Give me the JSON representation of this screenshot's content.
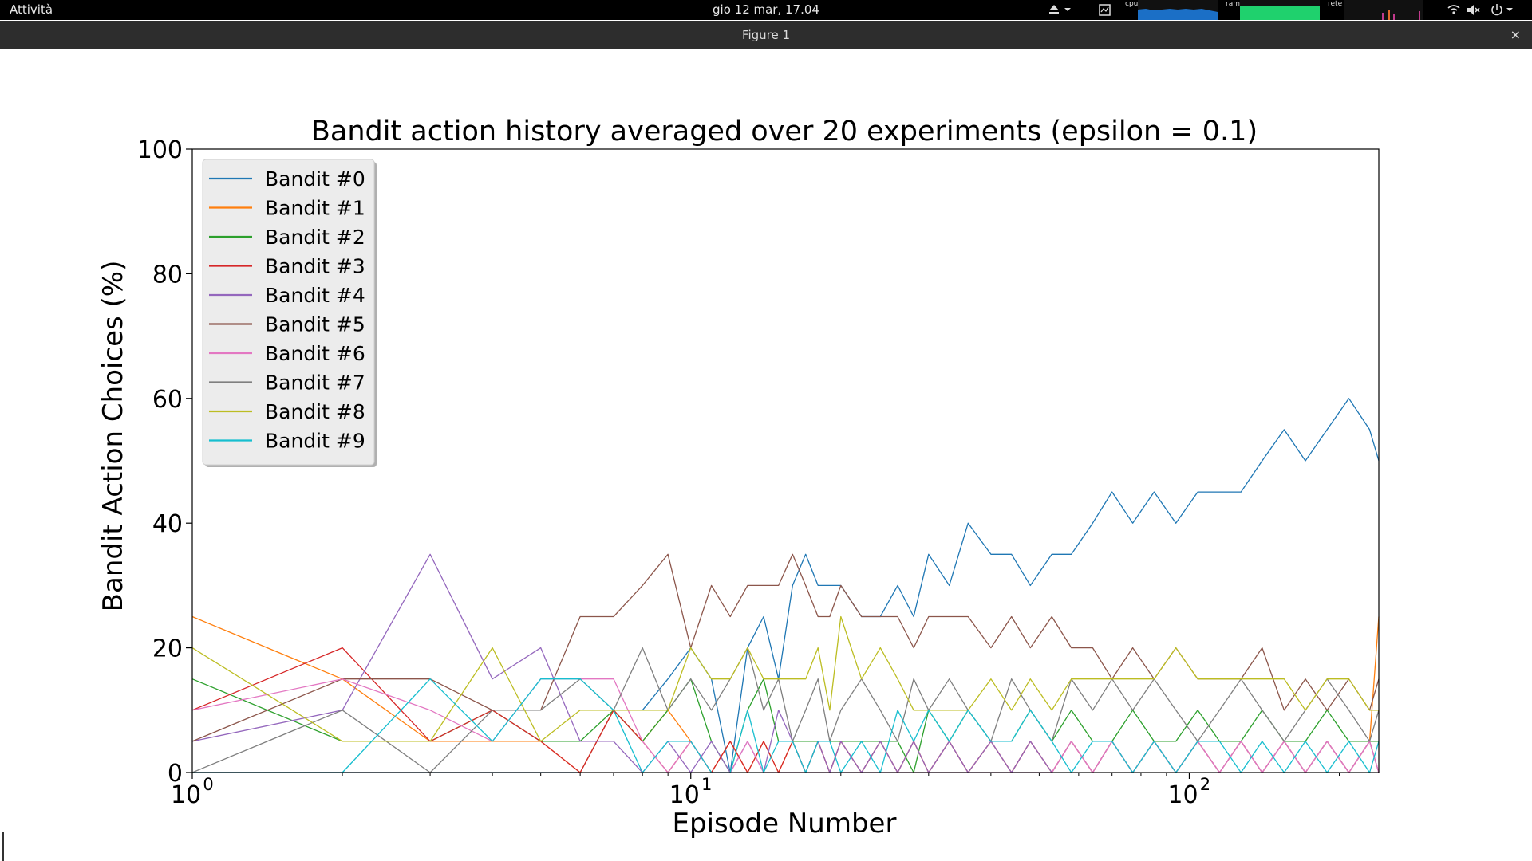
{
  "topbar": {
    "activities": "Attività",
    "clock": "gio 12 mar, 17.04",
    "monitors": {
      "cpu": "cpu",
      "ram": "ram",
      "net": "rete"
    },
    "icons": [
      "eject-icon",
      "chevron-down-icon",
      "system-monitor-icon",
      "wifi-icon",
      "volume-muted-icon",
      "power-icon",
      "chevron-down-icon"
    ]
  },
  "window": {
    "title": "Figure 1",
    "close": "×"
  },
  "chart_data": {
    "type": "line",
    "title": "Bandit action history averaged over 20 experiments (epsilon = 0.1)",
    "xlabel": "Episode Number",
    "ylabel": "Bandit Action Choices (%)",
    "xscale": "log",
    "xlim": [
      1,
      240
    ],
    "ylim": [
      0,
      100
    ],
    "xticks": [
      "10",
      "10",
      "10"
    ],
    "xtick_exponents": [
      "0",
      "1",
      "2"
    ],
    "yticks": [
      "0",
      "20",
      "40",
      "60",
      "80",
      "100"
    ],
    "legend_placement": "upper-left",
    "grid": false,
    "x": [
      1,
      2,
      3,
      4,
      5,
      6,
      7,
      8,
      9,
      10,
      11,
      12,
      13,
      14,
      15,
      16,
      17,
      18,
      19,
      20,
      22,
      24,
      26,
      28,
      30,
      33,
      36,
      40,
      44,
      48,
      53,
      58,
      64,
      70,
      77,
      85,
      94,
      104,
      115,
      127,
      140,
      155,
      171,
      189,
      209,
      230,
      240
    ],
    "series": [
      {
        "name": "Bandit #0",
        "color": "#1f77b4",
        "values": [
          0,
          0,
          0,
          0,
          0,
          0,
          10,
          10,
          15,
          20,
          15,
          0,
          20,
          25,
          15,
          30,
          35,
          30,
          30,
          30,
          25,
          25,
          30,
          25,
          35,
          30,
          40,
          35,
          35,
          30,
          35,
          35,
          40,
          45,
          40,
          45,
          40,
          45,
          45,
          45,
          50,
          55,
          50,
          55,
          60,
          55,
          50
        ]
      },
      {
        "name": "Bandit #1",
        "color": "#ff7f0e",
        "values": [
          25,
          15,
          5,
          5,
          5,
          0,
          10,
          5,
          10,
          5,
          0,
          5,
          0,
          5,
          0,
          5,
          0,
          5,
          0,
          5,
          0,
          5,
          0,
          5,
          0,
          5,
          0,
          5,
          0,
          5,
          0,
          5,
          0,
          5,
          0,
          5,
          0,
          5,
          0,
          5,
          0,
          5,
          0,
          5,
          0,
          5,
          25
        ]
      },
      {
        "name": "Bandit #2",
        "color": "#2ca02c",
        "values": [
          15,
          5,
          5,
          10,
          5,
          5,
          10,
          5,
          10,
          15,
          5,
          0,
          10,
          15,
          5,
          5,
          5,
          5,
          5,
          5,
          5,
          5,
          5,
          0,
          10,
          5,
          10,
          5,
          5,
          10,
          5,
          10,
          5,
          5,
          10,
          5,
          5,
          10,
          5,
          5,
          10,
          5,
          5,
          10,
          5,
          5,
          5
        ]
      },
      {
        "name": "Bandit #3",
        "color": "#d62728",
        "values": [
          10,
          20,
          5,
          10,
          5,
          0,
          10,
          5,
          0,
          5,
          0,
          5,
          0,
          5,
          0,
          5,
          0,
          5,
          0,
          5,
          0,
          5,
          0,
          5,
          0,
          5,
          0,
          5,
          0,
          5,
          0,
          5,
          0,
          5,
          0,
          5,
          0,
          5,
          0,
          5,
          0,
          5,
          0,
          5,
          0,
          5,
          0
        ]
      },
      {
        "name": "Bandit #4",
        "color": "#9467bd",
        "values": [
          5,
          10,
          35,
          15,
          20,
          5,
          5,
          0,
          5,
          0,
          5,
          0,
          5,
          0,
          10,
          5,
          0,
          5,
          0,
          5,
          0,
          5,
          0,
          5,
          0,
          5,
          0,
          5,
          0,
          5,
          0,
          5,
          0,
          5,
          0,
          5,
          0,
          5,
          0,
          5,
          0,
          5,
          0,
          5,
          0,
          5,
          0
        ]
      },
      {
        "name": "Bandit #5",
        "color": "#8c564b",
        "values": [
          5,
          15,
          15,
          10,
          10,
          25,
          25,
          30,
          35,
          20,
          30,
          25,
          30,
          30,
          30,
          35,
          30,
          25,
          25,
          30,
          25,
          25,
          25,
          20,
          25,
          25,
          25,
          20,
          25,
          20,
          25,
          20,
          20,
          15,
          20,
          15,
          20,
          15,
          15,
          15,
          20,
          10,
          15,
          10,
          15,
          10,
          15
        ]
      },
      {
        "name": "Bandit #6",
        "color": "#e377c2",
        "values": [
          10,
          15,
          10,
          5,
          15,
          15,
          15,
          5,
          0,
          5,
          0,
          0,
          5,
          0,
          0,
          0,
          0,
          0,
          0,
          0,
          0,
          0,
          0,
          0,
          0,
          0,
          0,
          0,
          0,
          0,
          0,
          5,
          0,
          5,
          0,
          5,
          0,
          5,
          0,
          5,
          0,
          5,
          0,
          5,
          0,
          5,
          0
        ]
      },
      {
        "name": "Bandit #7",
        "color": "#7f7f7f",
        "values": [
          0,
          10,
          0,
          10,
          10,
          15,
          10,
          20,
          10,
          15,
          10,
          15,
          20,
          10,
          15,
          5,
          10,
          15,
          5,
          10,
          15,
          10,
          5,
          15,
          10,
          15,
          10,
          5,
          15,
          10,
          5,
          15,
          10,
          15,
          10,
          15,
          10,
          5,
          10,
          15,
          10,
          5,
          10,
          15,
          10,
          5,
          10
        ]
      },
      {
        "name": "Bandit #8",
        "color": "#bcbd22",
        "values": [
          20,
          5,
          5,
          20,
          5,
          10,
          10,
          10,
          10,
          20,
          15,
          15,
          20,
          15,
          15,
          15,
          15,
          20,
          10,
          25,
          15,
          20,
          15,
          10,
          10,
          10,
          10,
          15,
          10,
          15,
          10,
          15,
          15,
          15,
          15,
          15,
          20,
          15,
          15,
          15,
          15,
          15,
          10,
          15,
          15,
          10,
          10
        ]
      },
      {
        "name": "Bandit #9",
        "color": "#17becf",
        "values": [
          0,
          0,
          15,
          5,
          15,
          15,
          10,
          0,
          5,
          5,
          0,
          0,
          10,
          0,
          5,
          5,
          0,
          5,
          5,
          0,
          5,
          0,
          10,
          5,
          10,
          5,
          10,
          5,
          5,
          10,
          5,
          0,
          5,
          5,
          0,
          5,
          0,
          5,
          5,
          0,
          5,
          0,
          5,
          0,
          5,
          0,
          5
        ]
      }
    ]
  }
}
